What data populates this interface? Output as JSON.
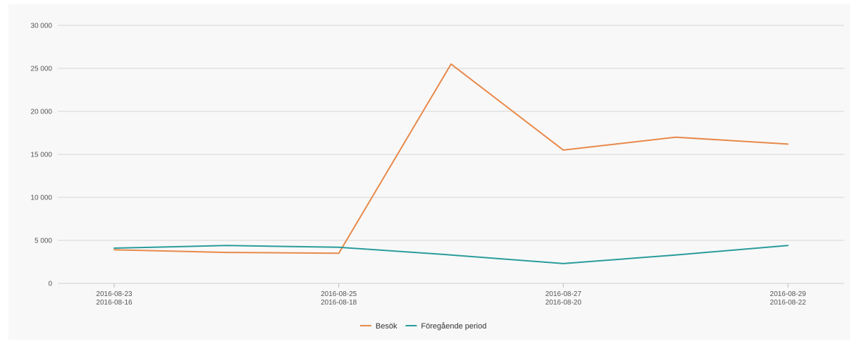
{
  "chart_data": {
    "type": "line",
    "x_ticks": [
      {
        "index": 0,
        "line1": "2016-08-23",
        "line2": "2016-08-16"
      },
      {
        "index": 2,
        "line1": "2016-08-25",
        "line2": "2016-08-18"
      },
      {
        "index": 4,
        "line1": "2016-08-27",
        "line2": "2016-08-20"
      },
      {
        "index": 6,
        "line1": "2016-08-29",
        "line2": "2016-08-22"
      }
    ],
    "x": [
      "2016-08-23",
      "2016-08-24",
      "2016-08-25",
      "2016-08-26",
      "2016-08-27",
      "2016-08-28",
      "2016-08-29"
    ],
    "y_ticks": [
      0,
      5000,
      10000,
      15000,
      20000,
      25000,
      30000
    ],
    "y_tick_labels": [
      "0",
      "5 000",
      "10 000",
      "15 000",
      "20 000",
      "25 000",
      "30 000"
    ],
    "ylim": [
      0,
      30000
    ],
    "grid": true,
    "legend_position": "bottom",
    "series": [
      {
        "name": "Besök",
        "color": "#e8894a",
        "values": [
          3900,
          3600,
          3500,
          25500,
          15500,
          17000,
          16200
        ]
      },
      {
        "name": "Föregående period",
        "color": "#2a9b9b",
        "values": [
          4100,
          4400,
          4200,
          3300,
          2300,
          3300,
          4400
        ]
      }
    ]
  }
}
